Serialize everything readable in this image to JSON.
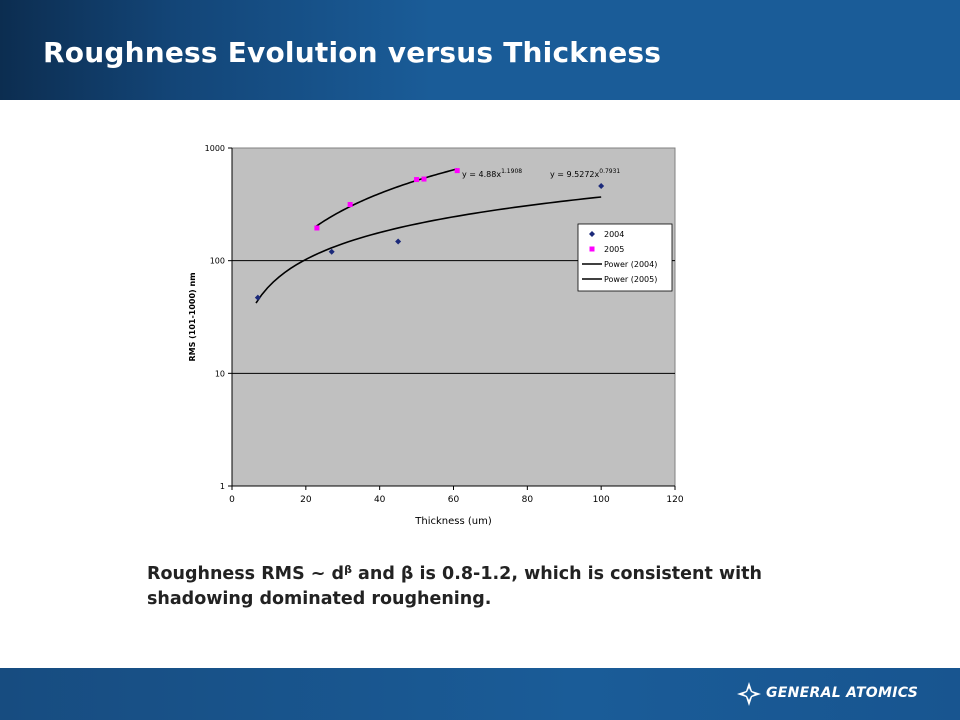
{
  "slide": {
    "title": "Roughness Evolution versus Thickness",
    "caption": {
      "before_sup": "Roughness RMS ~ d",
      "sup": "β",
      "after_sup": " and β is 0.8-1.2, which is consistent with shadowing dominated roughening."
    },
    "logo_text": "GENERAL ATOMICS"
  },
  "colors": {
    "header_dark": "#0c2d50",
    "header_blue": "#1a5c98",
    "footer_blue": "#1a5c98",
    "plot_bg": "#c0c0c0",
    "series_2004": "#1c2a7a",
    "series_2005": "#ff00ff",
    "fit_line": "#000000"
  },
  "chart_data": {
    "type": "scatter",
    "xlabel": "Thickness (um)",
    "ylabel": "RMS (101-1000) nm",
    "xlim": [
      0,
      120
    ],
    "ylim": [
      1,
      1000
    ],
    "yscale": "log",
    "x_ticks": [
      "0",
      "20",
      "40",
      "60",
      "80",
      "100",
      "120"
    ],
    "y_ticks": [
      "1",
      "10",
      "100",
      "1000"
    ],
    "grid": "horizontal major lines",
    "legend_position": "right",
    "series": [
      {
        "name": "2004",
        "marker": "diamond",
        "color": "#1c2a7a",
        "x": [
          7,
          27,
          45,
          100
        ],
        "y": [
          47,
          120,
          148,
          460
        ]
      },
      {
        "name": "2005",
        "marker": "square",
        "color": "#ff00ff",
        "x": [
          23,
          32,
          50,
          52,
          61
        ],
        "y": [
          195,
          315,
          525,
          530,
          630
        ]
      }
    ],
    "fits": [
      {
        "name": "Power (2004)",
        "coef": 9.5272,
        "exp": 0.7931,
        "x_range": [
          6.5,
          100
        ],
        "label_prefix": "y = 9.5272x",
        "label_exp": "0.7931"
      },
      {
        "name": "Power (2005)",
        "coef": 4.88,
        "exp": 1.1908,
        "x_range": [
          22.5,
          61
        ],
        "label_prefix": "y = 4.88x",
        "label_exp": "1.1908"
      }
    ]
  }
}
